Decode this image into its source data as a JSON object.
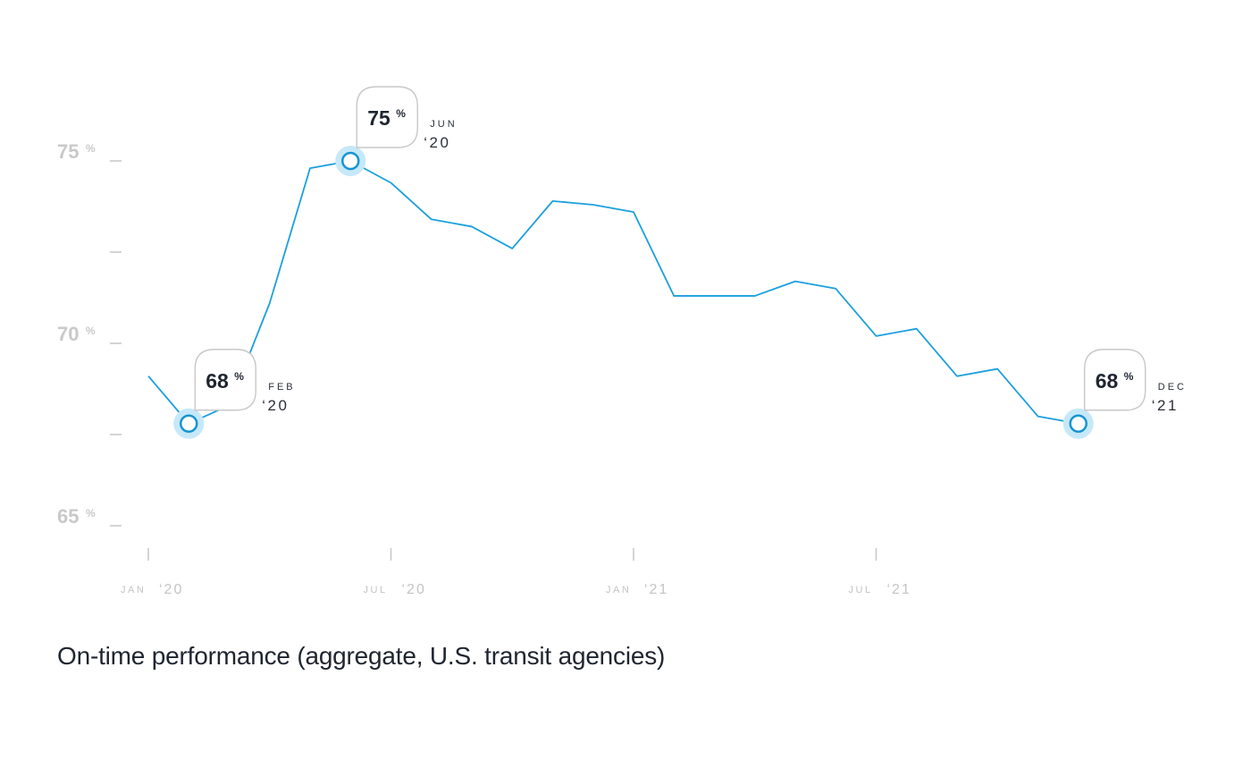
{
  "caption": "On-time performance (aggregate, U.S. transit agencies)",
  "chart_data": {
    "type": "line",
    "title": "",
    "xlabel": "",
    "ylabel": "",
    "ylim": [
      65,
      76.5
    ],
    "y_ticks": [
      {
        "value": 75,
        "label": "75",
        "unit": "%"
      },
      {
        "value": 72.5,
        "label": "",
        "unit": ""
      },
      {
        "value": 70,
        "label": "70",
        "unit": "%"
      },
      {
        "value": 67.5,
        "label": "",
        "unit": ""
      },
      {
        "value": 65,
        "label": "65",
        "unit": "%"
      }
    ],
    "x_ticks": [
      {
        "date": "2020-01",
        "month": "JAN",
        "year": "‘20"
      },
      {
        "date": "2020-07",
        "month": "JUL",
        "year": "‘20"
      },
      {
        "date": "2021-01",
        "month": "JAN",
        "year": "‘21"
      },
      {
        "date": "2021-07",
        "month": "JUL",
        "year": "‘21"
      }
    ],
    "x_range": [
      "2020-01",
      "2021-12"
    ],
    "grid": false,
    "colors": {
      "line": "#1ba0dc",
      "marker": "#1594d2",
      "halo": "#c6e8f8",
      "tick_text": "#c9c9c9",
      "text": "#1f2530"
    },
    "series": [
      {
        "x": [
          "2020-01",
          "2020-02",
          "2020-03",
          "2020-04",
          "2020-05",
          "2020-06",
          "2020-07",
          "2020-08",
          "2020-09",
          "2020-10",
          "2020-11",
          "2020-12",
          "2021-01",
          "2021-02",
          "2021-03",
          "2021-04",
          "2021-05",
          "2021-06",
          "2021-07",
          "2021-08",
          "2021-09",
          "2021-10",
          "2021-11",
          "2021-12"
        ],
        "values": [
          69.1,
          67.8,
          68.3,
          71.1,
          74.8,
          75.0,
          74.4,
          73.4,
          73.2,
          72.6,
          73.9,
          73.8,
          73.6,
          71.3,
          71.3,
          71.3,
          71.7,
          71.5,
          70.2,
          70.4,
          69.1,
          69.3,
          68.0,
          67.8
        ]
      }
    ],
    "annotations": [
      {
        "date": "2020-02",
        "value": "68",
        "unit": "%",
        "month": "FEB",
        "year": "‘20"
      },
      {
        "date": "2020-06",
        "value": "75",
        "unit": "%",
        "month": "JUN",
        "year": "‘20"
      },
      {
        "date": "2021-12",
        "value": "68",
        "unit": "%",
        "month": "DEC",
        "year": "‘21"
      }
    ]
  }
}
